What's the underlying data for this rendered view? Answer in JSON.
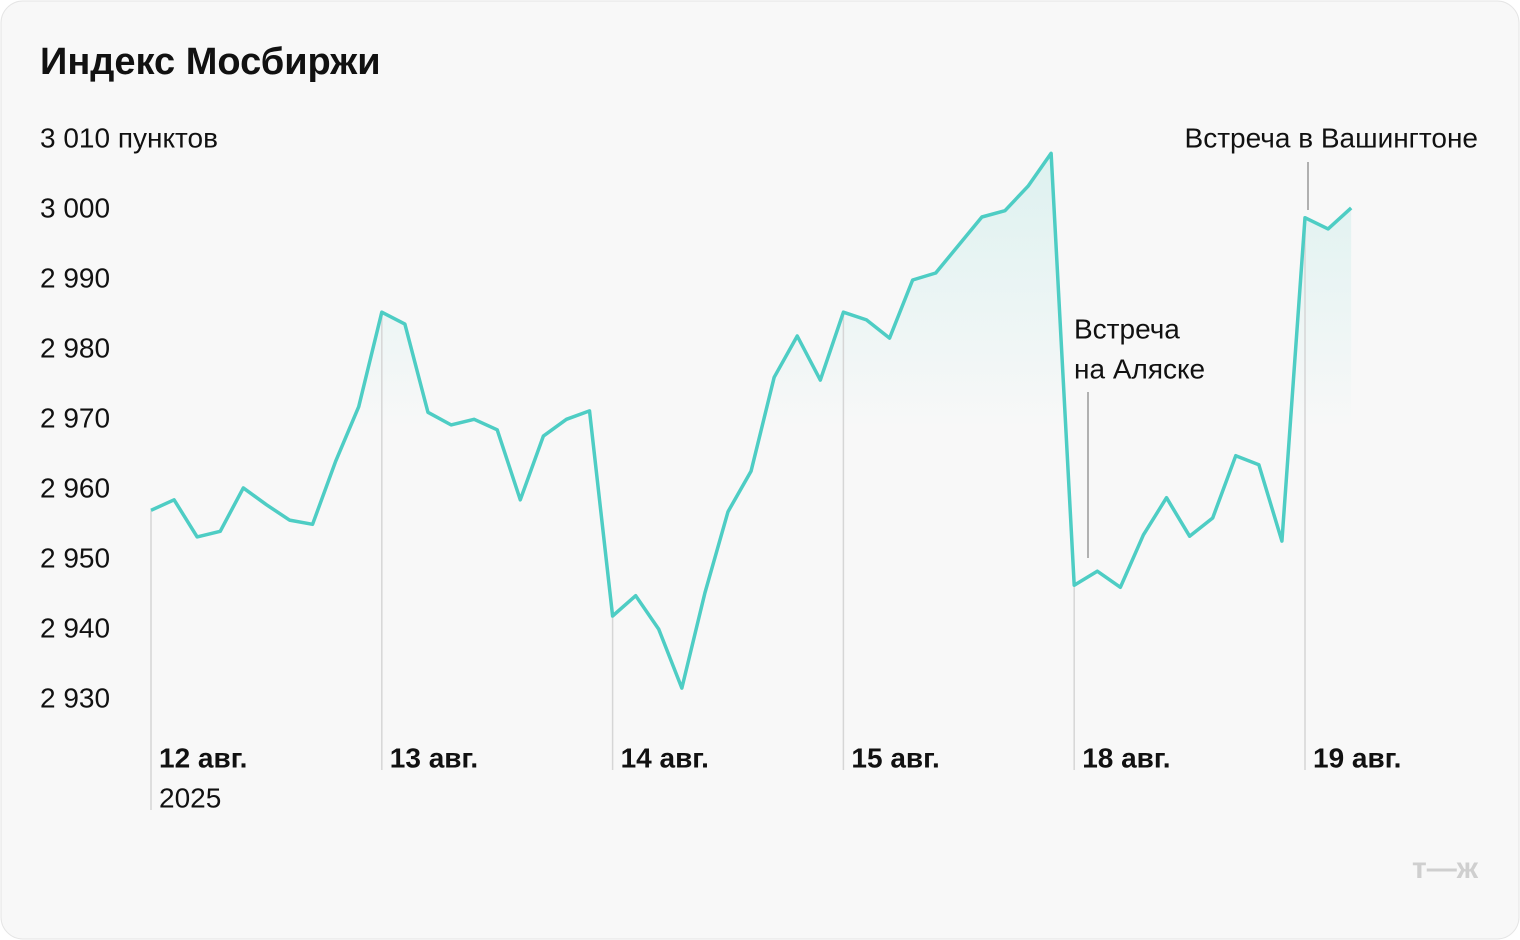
{
  "chart_data": {
    "type": "line",
    "title": "Индекс Мосбиржи",
    "categories": [
      "12 авг.",
      null,
      null,
      null,
      null,
      null,
      null,
      null,
      null,
      null,
      "13 авг.",
      null,
      null,
      null,
      null,
      null,
      null,
      null,
      null,
      null,
      "14 авг.",
      null,
      null,
      null,
      null,
      null,
      null,
      null,
      null,
      null,
      "15 авг.",
      null,
      null,
      null,
      null,
      null,
      null,
      null,
      null,
      null,
      "18 авг.",
      null,
      null,
      null,
      null,
      null,
      null,
      null,
      null,
      null,
      "19 авг.",
      null,
      null
    ],
    "year_label": "2025",
    "values": [
      2957.1,
      2958.6,
      2953.3,
      2954.1,
      2960.3,
      2957.9,
      2955.7,
      2955.1,
      2964.1,
      2971.9,
      2985.4,
      2983.7,
      2971.1,
      2969.3,
      2970.1,
      2968.6,
      2958.6,
      2967.7,
      2970.1,
      2971.3,
      2942.0,
      2944.9,
      2940.1,
      2931.7,
      2945.3,
      2956.9,
      2962.7,
      2976.1,
      2982.0,
      2975.7,
      2985.4,
      2984.3,
      2981.7,
      2990.0,
      2991.0,
      2995.0,
      2999.0,
      2999.9,
      3003.4,
      3008.1,
      2946.4,
      2948.4,
      2946.1,
      2953.6,
      2958.9,
      2953.4,
      2956.0,
      2964.9,
      2963.6,
      2952.7,
      2998.9,
      2997.3,
      3000.3
    ],
    "color": "#4ecdc4",
    "ylim": [
      2930,
      3010
    ],
    "yticks": [
      {
        "value": 3010,
        "label": "3 010 пунктов"
      },
      {
        "value": 3000,
        "label": "3 000"
      },
      {
        "value": 2990,
        "label": "2 990"
      },
      {
        "value": 2980,
        "label": "2 980"
      },
      {
        "value": 2970,
        "label": "2 970"
      },
      {
        "value": 2960,
        "label": "2 960"
      },
      {
        "value": 2950,
        "label": "2 950"
      },
      {
        "value": 2940,
        "label": "2 940"
      },
      {
        "value": 2930,
        "label": "2 930"
      }
    ],
    "annotations": [
      [
        "Встреча",
        "на Аляске"
      ],
      [
        "Встреча в Вашингтоне"
      ]
    ],
    "logo": "т—ж"
  }
}
